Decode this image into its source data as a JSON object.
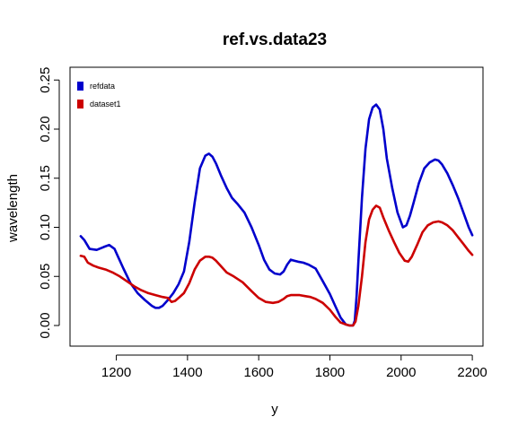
{
  "chart_data": {
    "type": "line",
    "title": "ref.vs.data23",
    "xlabel": "y",
    "ylabel": "wavelength",
    "xlim": [
      1070,
      2230
    ],
    "ylim": [
      -0.021,
      0.263
    ],
    "xticks": [
      1200,
      1400,
      1600,
      1800,
      2000,
      2200
    ],
    "yticks": [
      0.0,
      0.05,
      0.1,
      0.15,
      0.2,
      0.25
    ],
    "xtick_labels": [
      "1200",
      "1400",
      "1600",
      "1800",
      "2000",
      "2200"
    ],
    "ytick_labels": [
      "0.00",
      "0.05",
      "0.10",
      "0.15",
      "0.20",
      "0.25"
    ],
    "grid": false,
    "legend_position": "top-left",
    "series": [
      {
        "name": "refdata",
        "color": "#0000cc",
        "x": [
          1100,
          1110,
          1125,
          1145,
          1165,
          1180,
          1195,
          1205,
          1220,
          1240,
          1260,
          1280,
          1300,
          1310,
          1320,
          1330,
          1345,
          1360,
          1375,
          1390,
          1405,
          1420,
          1435,
          1450,
          1460,
          1470,
          1480,
          1495,
          1510,
          1525,
          1540,
          1560,
          1580,
          1600,
          1615,
          1630,
          1645,
          1660,
          1670,
          1680,
          1690,
          1700,
          1710,
          1725,
          1740,
          1760,
          1780,
          1800,
          1815,
          1830,
          1845,
          1855,
          1865,
          1870,
          1875,
          1880,
          1890,
          1900,
          1910,
          1920,
          1930,
          1940,
          1950,
          1960,
          1975,
          1990,
          2005,
          2015,
          2025,
          2035,
          2050,
          2065,
          2080,
          2095,
          2105,
          2115,
          2130,
          2145,
          2160,
          2175,
          2190,
          2200
        ],
        "values": [
          0.091,
          0.087,
          0.078,
          0.077,
          0.08,
          0.082,
          0.078,
          0.07,
          0.058,
          0.043,
          0.033,
          0.026,
          0.02,
          0.018,
          0.018,
          0.02,
          0.026,
          0.033,
          0.042,
          0.055,
          0.085,
          0.125,
          0.16,
          0.173,
          0.175,
          0.172,
          0.165,
          0.152,
          0.14,
          0.13,
          0.124,
          0.115,
          0.1,
          0.082,
          0.067,
          0.057,
          0.053,
          0.052,
          0.055,
          0.062,
          0.067,
          0.066,
          0.065,
          0.064,
          0.062,
          0.058,
          0.045,
          0.032,
          0.02,
          0.008,
          0.001,
          0.0,
          0.0,
          0.005,
          0.03,
          0.065,
          0.13,
          0.18,
          0.21,
          0.222,
          0.225,
          0.22,
          0.2,
          0.17,
          0.14,
          0.115,
          0.1,
          0.102,
          0.112,
          0.125,
          0.145,
          0.16,
          0.166,
          0.169,
          0.168,
          0.164,
          0.155,
          0.143,
          0.13,
          0.115,
          0.1,
          0.092
        ]
      },
      {
        "name": "dataset1",
        "color": "#cc0000",
        "x": [
          1100,
          1110,
          1120,
          1135,
          1150,
          1170,
          1190,
          1210,
          1230,
          1250,
          1270,
          1290,
          1310,
          1330,
          1345,
          1355,
          1365,
          1375,
          1390,
          1405,
          1420,
          1435,
          1450,
          1460,
          1470,
          1480,
          1495,
          1510,
          1530,
          1555,
          1580,
          1600,
          1620,
          1640,
          1655,
          1670,
          1680,
          1690,
          1700,
          1715,
          1730,
          1745,
          1760,
          1780,
          1800,
          1815,
          1830,
          1845,
          1855,
          1865,
          1872,
          1880,
          1890,
          1900,
          1910,
          1920,
          1930,
          1940,
          1950,
          1965,
          1980,
          1995,
          2010,
          2020,
          2030,
          2045,
          2060,
          2075,
          2090,
          2105,
          2115,
          2130,
          2145,
          2160,
          2175,
          2190,
          2200
        ],
        "values": [
          0.071,
          0.07,
          0.064,
          0.061,
          0.059,
          0.057,
          0.054,
          0.05,
          0.045,
          0.04,
          0.036,
          0.033,
          0.031,
          0.029,
          0.028,
          0.024,
          0.025,
          0.028,
          0.033,
          0.043,
          0.057,
          0.066,
          0.07,
          0.07,
          0.069,
          0.066,
          0.06,
          0.054,
          0.05,
          0.044,
          0.035,
          0.028,
          0.024,
          0.023,
          0.024,
          0.027,
          0.03,
          0.031,
          0.031,
          0.031,
          0.03,
          0.029,
          0.027,
          0.023,
          0.016,
          0.009,
          0.003,
          0.001,
          0.0,
          0.0,
          0.004,
          0.02,
          0.05,
          0.085,
          0.108,
          0.118,
          0.122,
          0.12,
          0.11,
          0.097,
          0.085,
          0.074,
          0.066,
          0.065,
          0.07,
          0.082,
          0.095,
          0.102,
          0.105,
          0.106,
          0.105,
          0.102,
          0.097,
          0.09,
          0.083,
          0.076,
          0.072
        ]
      }
    ]
  }
}
